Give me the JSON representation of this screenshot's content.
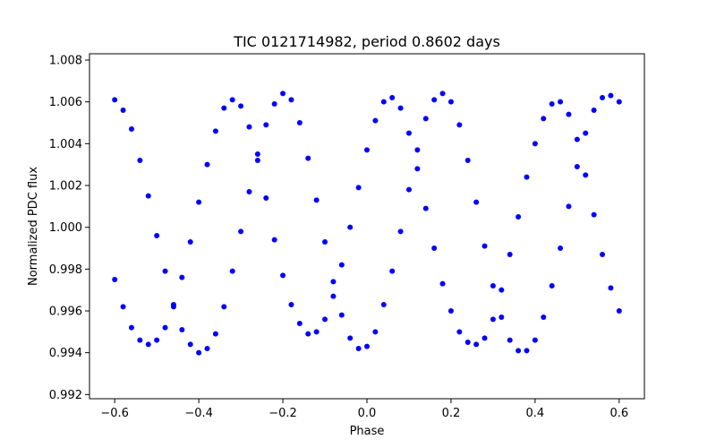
{
  "chart_data": {
    "type": "scatter",
    "title": "TIC 0121714982, period 0.8602 days",
    "xlabel": "Phase",
    "ylabel": "Normalized PDC flux",
    "xlim": [
      -0.66,
      0.66
    ],
    "ylim": [
      0.9918,
      1.0083
    ],
    "xticks": [
      -0.6,
      -0.4,
      -0.2,
      0.0,
      0.2,
      0.4,
      0.6
    ],
    "xtick_labels": [
      "−0.6",
      "−0.4",
      "−0.2",
      "0.0",
      "0.2",
      "0.4",
      "0.6"
    ],
    "yticks": [
      0.992,
      0.994,
      0.996,
      0.998,
      1.0,
      1.002,
      1.004,
      1.006,
      1.008
    ],
    "ytick_labels": [
      "0.992",
      "0.994",
      "0.996",
      "0.998",
      "1.000",
      "1.002",
      "1.004",
      "1.006",
      "1.008"
    ],
    "grid": false,
    "legend": "none",
    "marker_color": "#0000ff",
    "series": [
      {
        "x": [
          -0.6,
          -0.58,
          -0.56,
          -0.54,
          -0.52,
          -0.5,
          -0.48,
          -0.46,
          -0.44,
          -0.42,
          -0.4,
          -0.38,
          -0.36,
          -0.34,
          -0.32,
          -0.3,
          -0.28,
          -0.26,
          -0.24,
          -0.22,
          -0.2,
          -0.18,
          -0.16,
          -0.14,
          -0.12,
          -0.1,
          -0.08,
          -0.06,
          -0.04,
          -0.02,
          0.0,
          0.02,
          0.04,
          0.06,
          0.08,
          0.1,
          0.12,
          0.14,
          0.16,
          0.18,
          0.2,
          0.22,
          0.24,
          0.26,
          0.28,
          0.3,
          0.32,
          0.34,
          0.36,
          0.38,
          0.4,
          0.42,
          0.44,
          0.46,
          0.48,
          0.5,
          0.52,
          0.54,
          0.56,
          0.58,
          0.6
        ],
        "y": [
          1.0061,
          1.0056,
          1.0047,
          1.0032,
          1.0015,
          0.9996,
          0.9979,
          0.9963,
          0.9951,
          0.9944,
          0.994,
          0.9942,
          0.9949,
          0.9962,
          0.9979,
          0.9998,
          1.0017,
          1.0035,
          1.0049,
          1.0059,
          1.0064,
          1.0061,
          1.005,
          1.0033,
          1.0013,
          0.9993,
          0.9974,
          0.9958,
          0.9947,
          0.9942,
          0.9943,
          0.995,
          0.9963,
          0.9979,
          0.9998,
          1.0018,
          1.0037,
          1.0052,
          1.0061,
          1.0064,
          1.006,
          1.0049,
          1.0032,
          1.0012,
          0.9991,
          0.9972,
          0.9957,
          0.9946,
          0.9941,
          0.9941,
          0.9946,
          0.9957,
          0.9972,
          0.999,
          1.001,
          1.0029,
          1.0045,
          1.0056,
          1.0062,
          1.0063,
          1.006
        ]
      },
      {
        "x": [
          -0.6,
          -0.58,
          -0.56,
          -0.54,
          -0.52,
          -0.5,
          -0.48,
          -0.46,
          -0.44,
          -0.42,
          -0.4,
          -0.38,
          -0.36,
          -0.34,
          -0.32,
          -0.3,
          -0.28,
          -0.26,
          -0.24,
          -0.22,
          -0.2,
          -0.18,
          -0.16,
          -0.14,
          -0.12,
          -0.1,
          -0.08,
          -0.06,
          -0.04,
          -0.02,
          0.0,
          0.02,
          0.04,
          0.06,
          0.08,
          0.1,
          0.12,
          0.14,
          0.16,
          0.18,
          0.2,
          0.22,
          0.24,
          0.26,
          0.28,
          0.3,
          0.32,
          0.34,
          0.36,
          0.38,
          0.4,
          0.42,
          0.44,
          0.46,
          0.48,
          0.5,
          0.52,
          0.54,
          0.56,
          0.58,
          0.6
        ],
        "y": [
          0.9975,
          0.9962,
          0.9952,
          0.9946,
          0.9944,
          0.9946,
          0.9952,
          0.9962,
          0.9976,
          0.9993,
          1.0012,
          1.003,
          1.0046,
          1.0057,
          1.0061,
          1.0058,
          1.0048,
          1.0032,
          1.0014,
          0.9994,
          0.9977,
          0.9963,
          0.9954,
          0.9949,
          0.995,
          0.9956,
          0.9967,
          0.9982,
          1.0,
          1.0019,
          1.0037,
          1.0051,
          1.006,
          1.0062,
          1.0057,
          1.0045,
          1.0028,
          1.0009,
          0.999,
          0.9973,
          0.996,
          0.995,
          0.9945,
          0.9944,
          0.9947,
          0.9956,
          0.997,
          0.9987,
          1.0005,
          1.0024,
          1.004,
          1.0052,
          1.0059,
          1.006,
          1.0054,
          1.0042,
          1.0025,
          1.0006,
          0.9987,
          0.9971,
          0.996
        ]
      }
    ]
  }
}
